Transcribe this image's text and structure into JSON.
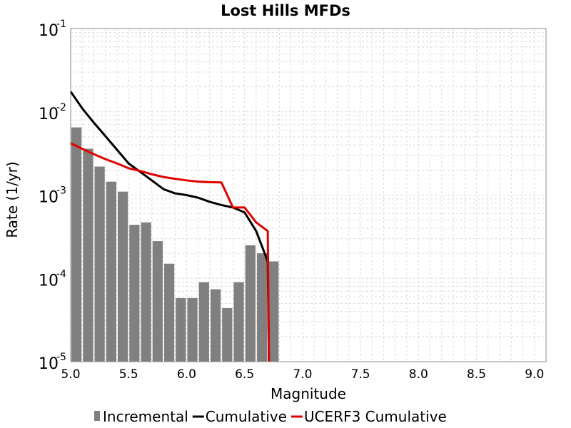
{
  "chart_data": {
    "type": "bar",
    "title": "Lost Hills MFDs",
    "xlabel": "Magnitude",
    "ylabel": "Rate (1/yr)",
    "xlim": [
      5.0,
      9.1
    ],
    "ylim": [
      1e-05,
      0.1
    ],
    "y_scale": "log",
    "grid": true,
    "legend_position": "bottom",
    "x_ticks": [
      5.0,
      5.5,
      6.0,
      6.5,
      7.0,
      7.5,
      8.0,
      8.5,
      9.0
    ],
    "x_tick_labels": [
      "5.0",
      "5.5",
      "6.0",
      "6.5",
      "7.0",
      "7.5",
      "8.0",
      "8.5",
      "9.0"
    ],
    "y_ticks": [
      {
        "base": "10",
        "exp": "-5",
        "value": 1e-05
      },
      {
        "base": "10",
        "exp": "-4",
        "value": 0.0001
      },
      {
        "base": "10",
        "exp": "-3",
        "value": 0.001
      },
      {
        "base": "10",
        "exp": "-2",
        "value": 0.01
      },
      {
        "base": "10",
        "exp": "-1",
        "value": 0.1
      }
    ],
    "series": [
      {
        "name": "Incremental",
        "kind": "bar",
        "color": "#808080",
        "bar_width": 0.1,
        "x": [
          5.05,
          5.15,
          5.25,
          5.35,
          5.45,
          5.55,
          5.65,
          5.75,
          5.85,
          5.95,
          6.05,
          6.15,
          6.25,
          6.35,
          6.45,
          6.55,
          6.65,
          6.75
        ],
        "values": [
          0.0065,
          0.0036,
          0.0022,
          0.00145,
          0.0011,
          0.00044,
          0.00047,
          0.00028,
          0.00015,
          5.8e-05,
          5.8e-05,
          9e-05,
          7.4e-05,
          4.4e-05,
          9e-05,
          0.00025,
          0.0002,
          0.00016
        ]
      },
      {
        "name": "Cumulative",
        "kind": "line",
        "color": "#000000",
        "x": [
          5.0,
          5.1,
          5.2,
          5.3,
          5.4,
          5.5,
          5.6,
          5.7,
          5.8,
          5.9,
          6.0,
          6.1,
          6.2,
          6.3,
          6.4,
          6.5,
          6.6,
          6.7,
          6.71
        ],
        "values": [
          0.0175,
          0.011,
          0.0074,
          0.0051,
          0.0035,
          0.0024,
          0.0019,
          0.0015,
          0.00118,
          0.00105,
          0.001,
          0.00093,
          0.00083,
          0.00076,
          0.00071,
          0.00062,
          0.00037,
          0.00016,
          1e-05
        ]
      },
      {
        "name": "UCERF3 Cumulative",
        "kind": "line",
        "color": "#e00000",
        "x": [
          5.0,
          5.1,
          5.2,
          5.3,
          5.4,
          5.5,
          5.6,
          5.7,
          5.8,
          5.9,
          6.0,
          6.1,
          6.2,
          6.3,
          6.4,
          6.5,
          6.6,
          6.7,
          6.71
        ],
        "values": [
          0.0042,
          0.0036,
          0.0031,
          0.0027,
          0.0024,
          0.0021,
          0.00195,
          0.00178,
          0.00165,
          0.00157,
          0.0015,
          0.00145,
          0.00143,
          0.00142,
          0.00071,
          0.00071,
          0.00047,
          0.00037,
          1e-05
        ]
      }
    ]
  }
}
